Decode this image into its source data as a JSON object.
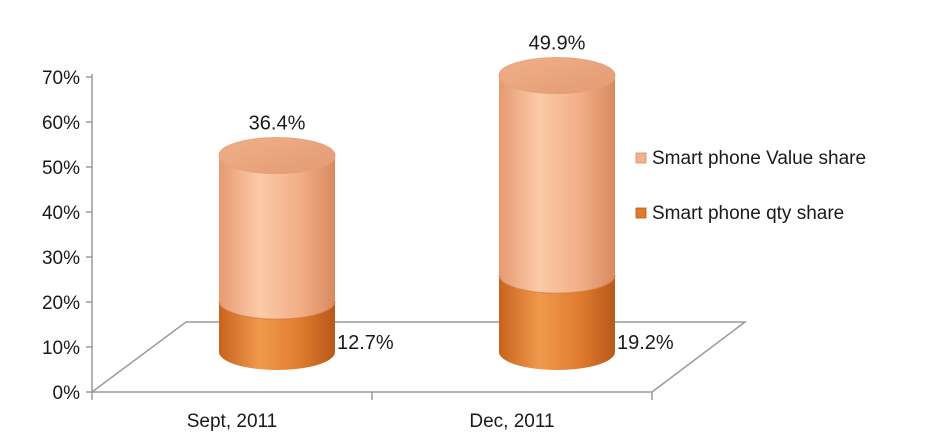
{
  "chart_data": {
    "type": "bar",
    "style": "3d-cylinder-stacked",
    "categories": [
      "Sept, 2011",
      "Dec, 2011"
    ],
    "series": [
      {
        "name": "Smart phone qty share",
        "values": [
          12.7,
          19.2
        ],
        "labels": [
          "12.7%",
          "19.2%"
        ],
        "color": "#E07B2E"
      },
      {
        "name": "Smart phone Value share",
        "values": [
          36.4,
          49.9
        ],
        "labels": [
          "36.4%",
          "49.9%"
        ],
        "color": "#F4B08A"
      }
    ],
    "yticks": [
      "0%",
      "10%",
      "20%",
      "30%",
      "40%",
      "50%",
      "60%",
      "70%"
    ],
    "ylim": [
      0,
      70
    ],
    "grid": false,
    "legend": "right"
  }
}
